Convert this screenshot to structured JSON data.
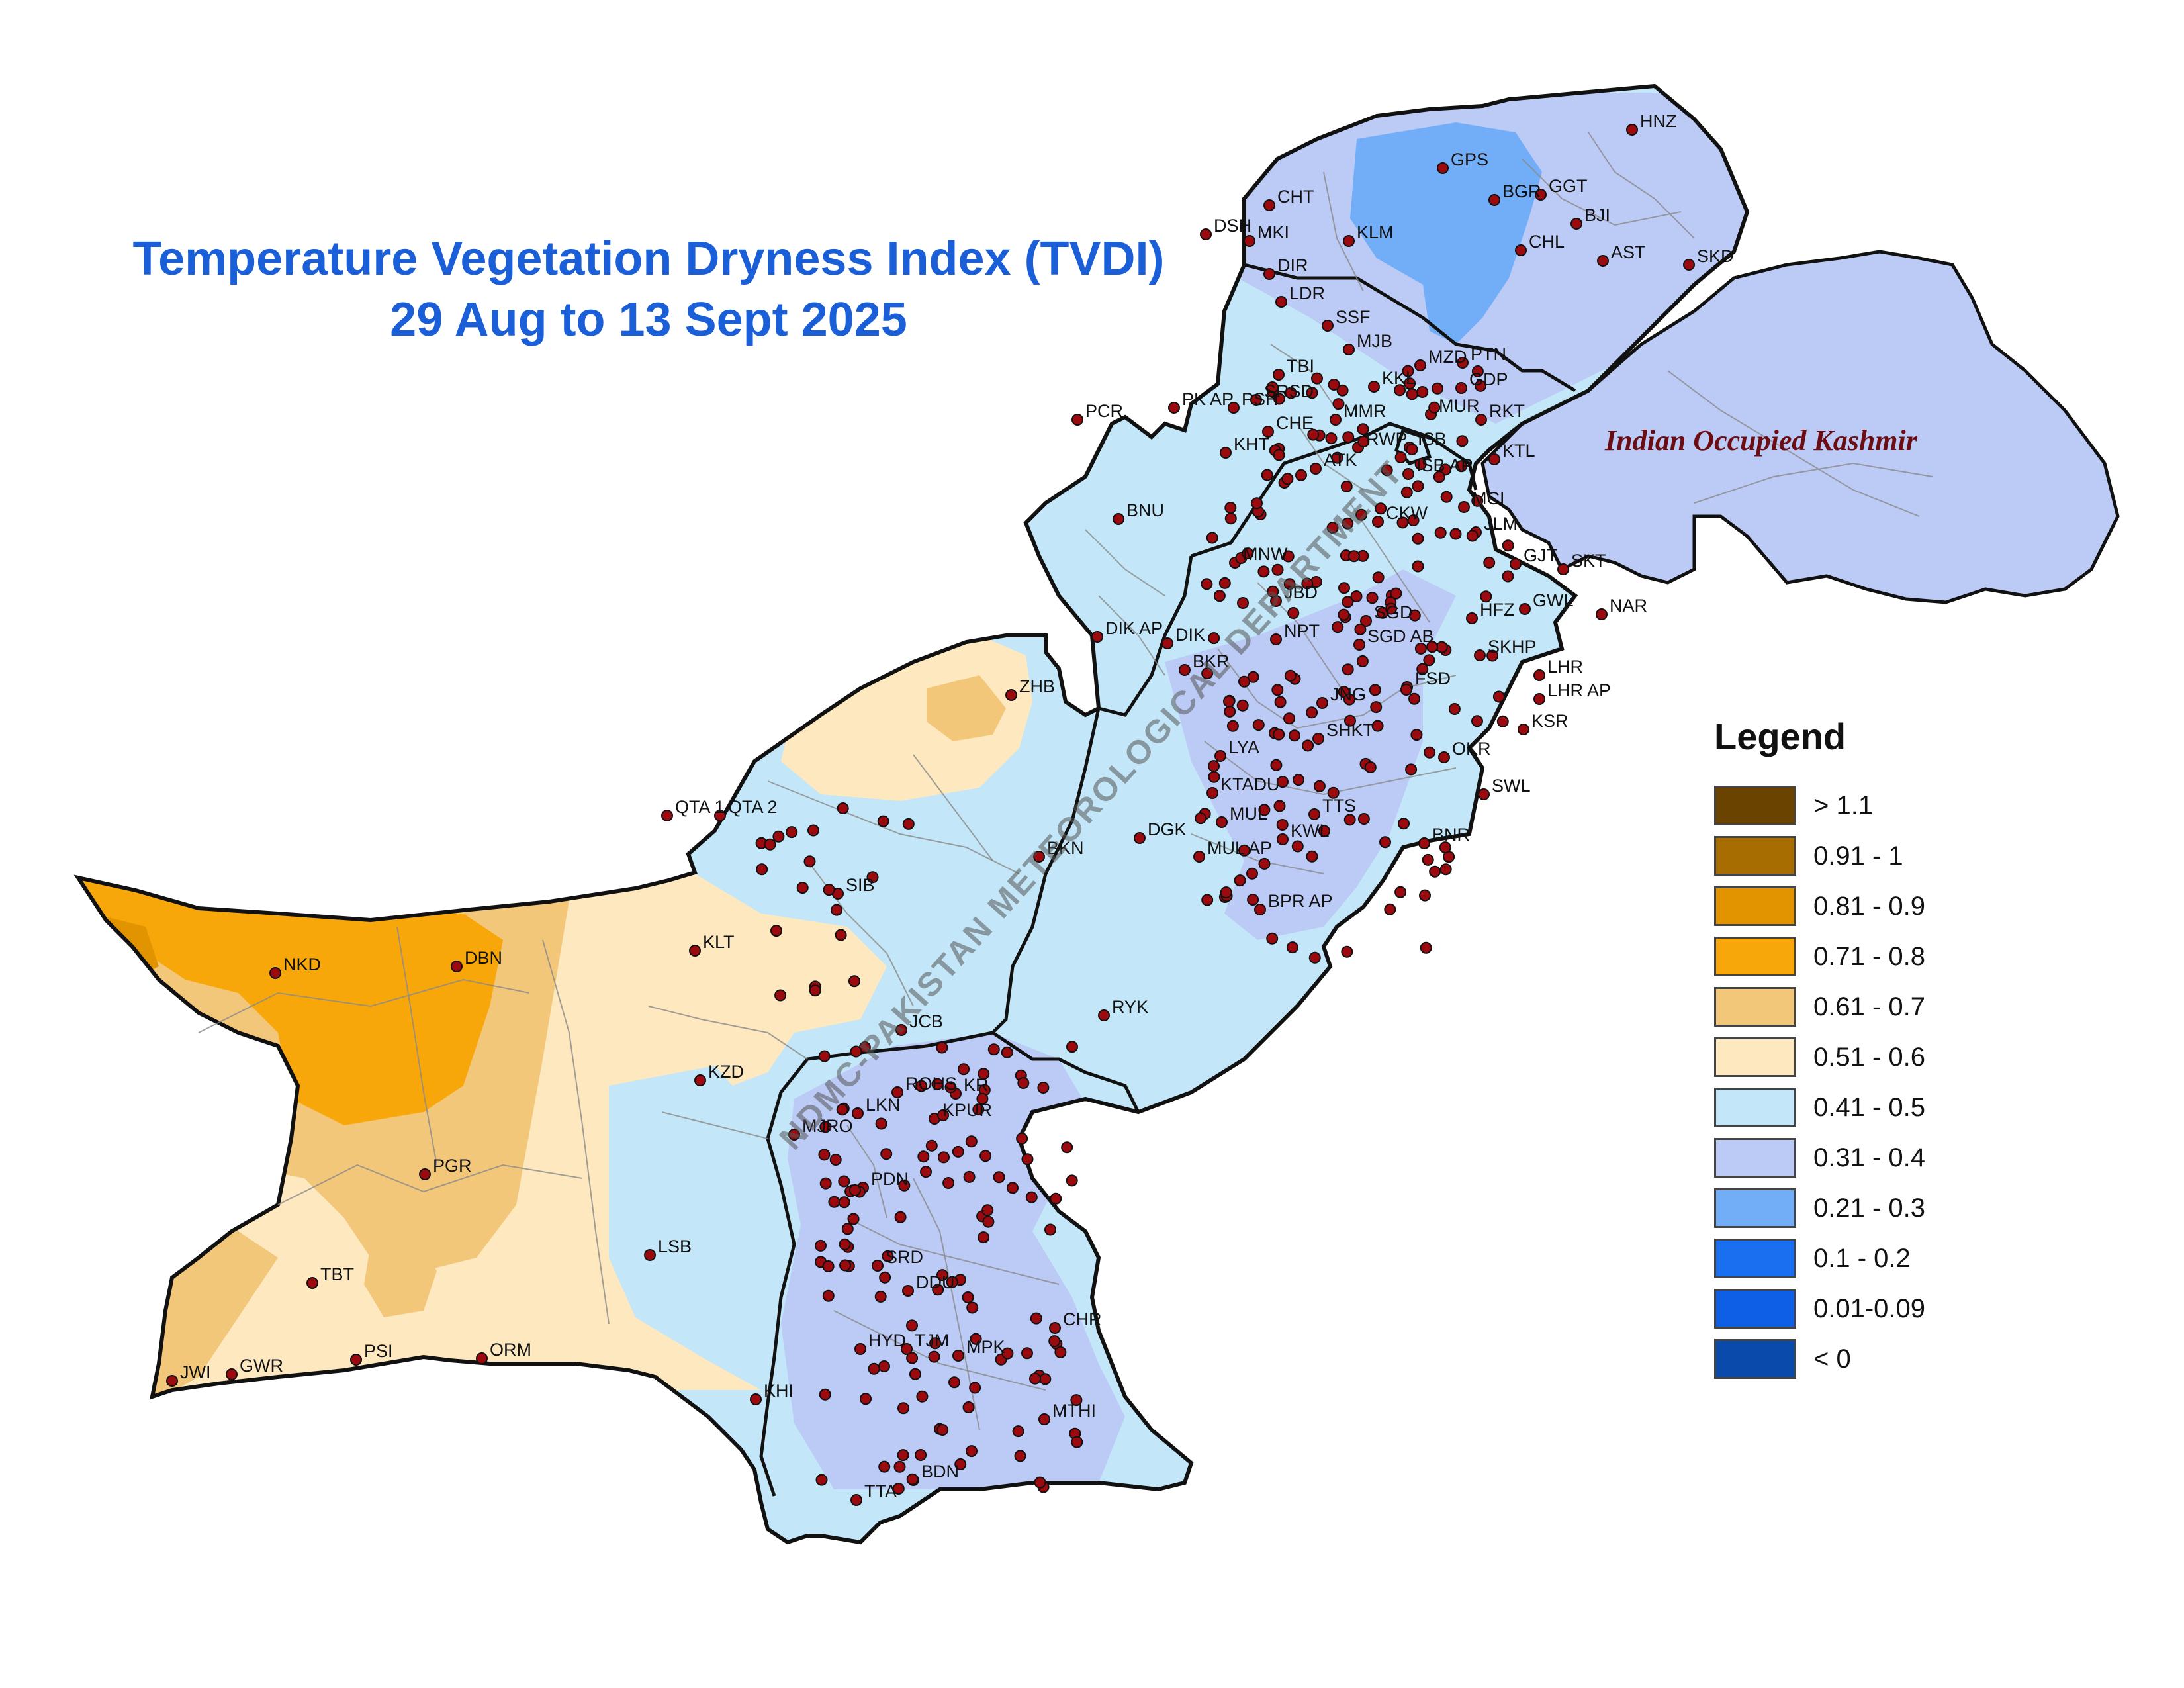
{
  "title": {
    "line1": "Temperature Vegetation Dryness Index (TVDI)",
    "line2": "29 Aug to 13 Sept 2025"
  },
  "watermark": "NDMC-PAKISTAN METEOROLOGICAL DEPARTMENT",
  "region_label": "Indian Occupied Kashmir",
  "legend": {
    "title": "Legend",
    "items": [
      {
        "label": "> 1.1",
        "color": "#6b4300"
      },
      {
        "label": "0.91 - 1",
        "color": "#a86d00"
      },
      {
        "label": "0.81 - 0.9",
        "color": "#e29400"
      },
      {
        "label": "0.71 - 0.8",
        "color": "#f7a70a"
      },
      {
        "label": "0.61 - 0.7",
        "color": "#f3c77a"
      },
      {
        "label": "0.51 - 0.6",
        "color": "#fde8bf"
      },
      {
        "label": "0.41 - 0.5",
        "color": "#c3e7f8"
      },
      {
        "label": "0.31 - 0.4",
        "color": "#bccaf6"
      },
      {
        "label": "0.21 - 0.3",
        "color": "#72aef7"
      },
      {
        "label": "0.1 - 0.2",
        "color": "#1a6ff0"
      },
      {
        "label": "0.01-0.09",
        "color": "#0f5fe6"
      },
      {
        "label": "< 0",
        "color": "#0a4aaa"
      }
    ]
  },
  "stations": [
    "HNZ",
    "GPS",
    "BGR",
    "GGT",
    "CHT",
    "BJI",
    "DSH",
    "MKI",
    "KLM",
    "CHL",
    "AST",
    "SKD",
    "DIR",
    "LDR",
    "SSF",
    "MJB",
    "MZD",
    "PTN",
    "TBI",
    "SRSD",
    "KKL",
    "GDP",
    "PCR",
    "PK AP",
    "PSH",
    "MMR",
    "MUR",
    "RKT",
    "CHE",
    "KHT",
    "RWP",
    "ISB",
    "KTL",
    "ATK",
    "ISB AP",
    "MCI",
    "BNU",
    "CKW",
    "JLM",
    "GJT",
    "SKT",
    "MNW",
    "JBD",
    "SGD",
    "HFZ",
    "GWL",
    "NAR",
    "DIK AP",
    "DIK",
    "NPT",
    "SGD AB",
    "SKHP",
    "BKR",
    "FSD",
    "LHR",
    "LHR AP",
    "ZHB",
    "JNG",
    "KSR",
    "SHKT",
    "LYA",
    "OKR",
    "KTADU",
    "SWL",
    "QTA 1",
    "QTA 2",
    "MUL",
    "TTS",
    "DGK",
    "MUL AP",
    "KWL",
    "BNR",
    "BKN",
    "SIB",
    "BPR AP",
    "NKD",
    "DBN",
    "KLT",
    "RYK",
    "JCB",
    "KZD",
    "ROHS",
    "KR",
    "LKN",
    "KPUR",
    "MJRO",
    "PGR",
    "PDN",
    "LSB",
    "SRD",
    "TBT",
    "DDU",
    "CHR",
    "HYD",
    "TJM",
    "MPK",
    "PSI",
    "ORM",
    "JWI",
    "GWR",
    "KHI",
    "MTHI",
    "TTA",
    "BDN"
  ]
}
